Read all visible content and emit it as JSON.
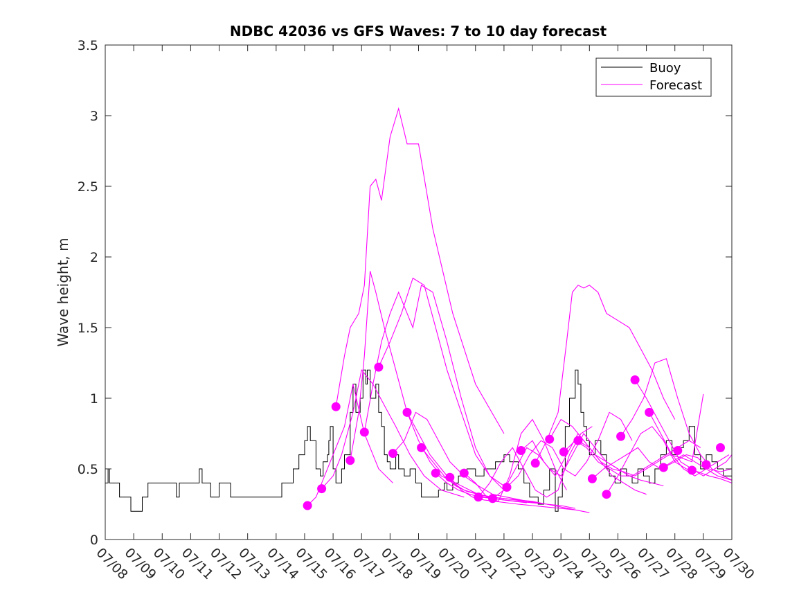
{
  "chart_data": {
    "type": "line",
    "title": "NDBC 42036 vs GFS Waves: 7 to 10 day forecast",
    "xlabel": "",
    "ylabel": "Wave height, m",
    "x_unit": "days since 07/08 00:00",
    "xlim": [
      0,
      22
    ],
    "ylim": [
      0,
      3.5
    ],
    "yticks": [
      0,
      0.5,
      1,
      1.5,
      2,
      2.5,
      3,
      3.5
    ],
    "yticklabels": [
      "0",
      "0.5",
      "1",
      "1.5",
      "2",
      "2.5",
      "3",
      "3.5"
    ],
    "xtick_labels": [
      "07/08",
      "07/09",
      "07/10",
      "07/11",
      "07/12",
      "07/13",
      "07/14",
      "07/15",
      "07/16",
      "07/17",
      "07/18",
      "07/19",
      "07/20",
      "07/21",
      "07/22",
      "07/23",
      "07/24",
      "07/25",
      "07/26",
      "07/27",
      "07/28",
      "07/29",
      "07/30"
    ],
    "legend": {
      "placement": "top-right",
      "entries": [
        "Buoy",
        "Forecast"
      ]
    },
    "colors": {
      "buoy": "#000000",
      "forecast": "#ff00ff",
      "axes": "#262626"
    },
    "buoy": {
      "name": "Buoy",
      "x": [
        0,
        0.1,
        0.15,
        0.5,
        0.9,
        1.3,
        1.5,
        1.9,
        2.5,
        2.6,
        3.0,
        3.3,
        3.4,
        3.7,
        4.0,
        4.4,
        5.0,
        6.0,
        6.2,
        6.5,
        6.6,
        6.8,
        7.0,
        7.1,
        7.2,
        7.4,
        7.55,
        7.65,
        7.8,
        7.85,
        7.9,
        8.0,
        8.1,
        8.3,
        8.4,
        8.6,
        8.7,
        8.8,
        8.95,
        9.05,
        9.15,
        9.2,
        9.3,
        9.5,
        9.6,
        9.7,
        9.8,
        9.9,
        10.0,
        10.2,
        10.3,
        10.5,
        10.7,
        10.9,
        11.1,
        11.2,
        11.5,
        11.7,
        11.9,
        12.0,
        12.2,
        12.4,
        12.7,
        13.0,
        13.3,
        13.7,
        14.0,
        14.2,
        14.5,
        14.7,
        14.9,
        15.2,
        15.4,
        15.6,
        15.8,
        15.9,
        16.05,
        16.15,
        16.3,
        16.5,
        16.6,
        16.7,
        16.8,
        16.9,
        17.0,
        17.2,
        17.4,
        17.6,
        17.7,
        17.9,
        18.1,
        18.3,
        18.5,
        18.7,
        18.9,
        19.1,
        19.3,
        19.5,
        19.7,
        19.9,
        20.1,
        20.3,
        20.5,
        20.7,
        20.9,
        21.1,
        21.3,
        21.5,
        21.7,
        22.0
      ],
      "y": [
        0.4,
        0.5,
        0.4,
        0.3,
        0.2,
        0.3,
        0.4,
        0.4,
        0.3,
        0.4,
        0.4,
        0.5,
        0.4,
        0.3,
        0.4,
        0.3,
        0.3,
        0.3,
        0.4,
        0.4,
        0.5,
        0.6,
        0.7,
        0.8,
        0.7,
        0.5,
        0.45,
        0.55,
        0.6,
        0.7,
        0.8,
        0.5,
        0.4,
        0.5,
        0.6,
        0.9,
        1.1,
        0.9,
        1.0,
        1.2,
        1.1,
        1.2,
        1.0,
        1.1,
        0.9,
        0.8,
        0.6,
        0.55,
        0.5,
        0.6,
        0.5,
        0.45,
        0.5,
        0.4,
        0.3,
        0.3,
        0.3,
        0.35,
        0.4,
        0.35,
        0.4,
        0.45,
        0.5,
        0.45,
        0.5,
        0.55,
        0.6,
        0.55,
        0.5,
        0.4,
        0.3,
        0.25,
        0.35,
        0.5,
        0.2,
        0.3,
        0.5,
        0.8,
        1.0,
        1.2,
        1.1,
        0.9,
        0.8,
        0.7,
        0.6,
        0.7,
        0.6,
        0.5,
        0.45,
        0.4,
        0.5,
        0.45,
        0.4,
        0.5,
        0.45,
        0.4,
        0.5,
        0.6,
        0.7,
        0.6,
        0.65,
        0.7,
        0.8,
        0.6,
        0.5,
        0.6,
        0.55,
        0.5,
        0.45,
        0.5
      ]
    },
    "forecast_series": [
      {
        "x": [
          7.1,
          7.4,
          7.7,
          8.0,
          8.4,
          8.7,
          9.1,
          9.6,
          10.1
        ],
        "y": [
          0.24,
          0.3,
          0.45,
          0.6,
          0.8,
          1.1,
          0.75,
          0.5,
          0.4
        ]
      },
      {
        "x": [
          7.6,
          8.0,
          8.3,
          8.7,
          9.0,
          9.4,
          9.8,
          10.2,
          10.7,
          11.2,
          11.8,
          12.6
        ],
        "y": [
          0.36,
          0.45,
          0.6,
          0.9,
          1.2,
          1.1,
          0.95,
          0.8,
          0.6,
          0.45,
          0.35,
          0.3
        ]
      },
      {
        "x": [
          8.1,
          8.4,
          8.6,
          8.9,
          9.1,
          9.3,
          9.5,
          9.7,
          10.0,
          10.3,
          10.6,
          11.0,
          11.5,
          12.2,
          13.0,
          14.0
        ],
        "y": [
          0.94,
          1.3,
          1.5,
          1.6,
          1.8,
          2.5,
          2.55,
          2.4,
          2.85,
          3.05,
          2.8,
          2.8,
          2.2,
          1.6,
          1.1,
          0.75
        ]
      },
      {
        "x": [
          8.6,
          8.9,
          9.1,
          9.3,
          9.5,
          9.8,
          10.2,
          10.6,
          11.0,
          11.4,
          11.8,
          12.3,
          12.8,
          13.3,
          14.0,
          14.8
        ],
        "y": [
          0.56,
          0.9,
          1.3,
          1.9,
          1.75,
          1.5,
          1.2,
          0.9,
          0.7,
          0.55,
          0.45,
          0.4,
          0.35,
          0.3,
          0.28,
          0.26
        ]
      },
      {
        "x": [
          9.1,
          9.4,
          9.7,
          10.0,
          10.3,
          10.5,
          10.8,
          11.1,
          11.5,
          12.0,
          12.5,
          13.0,
          13.5,
          14.0
        ],
        "y": [
          0.76,
          1.1,
          1.4,
          1.6,
          1.75,
          1.65,
          1.5,
          1.8,
          1.75,
          1.4,
          1.0,
          0.65,
          0.45,
          0.35
        ]
      },
      {
        "x": [
          9.6,
          10.0,
          10.4,
          10.8,
          11.2,
          11.6,
          12.0,
          12.5,
          13.0,
          13.5,
          14.0
        ],
        "y": [
          1.22,
          1.4,
          1.6,
          1.85,
          1.8,
          1.5,
          1.2,
          0.9,
          0.6,
          0.45,
          0.38
        ]
      },
      {
        "x": [
          10.1,
          10.5,
          10.9,
          11.3,
          11.7,
          12.1,
          12.6,
          13.1,
          13.6,
          14.1,
          14.6,
          15.1
        ],
        "y": [
          0.61,
          0.7,
          0.9,
          0.85,
          0.7,
          0.55,
          0.45,
          0.38,
          0.32,
          0.3,
          0.28,
          0.26
        ]
      },
      {
        "x": [
          10.6,
          11.0,
          11.4,
          11.8,
          12.2,
          12.6,
          13.1,
          13.6,
          14.0,
          14.4,
          14.8,
          15.2
        ],
        "y": [
          0.9,
          0.75,
          0.6,
          0.5,
          0.4,
          0.35,
          0.32,
          0.3,
          0.29,
          0.28,
          0.27,
          0.26
        ]
      },
      {
        "x": [
          11.1,
          11.5,
          11.9,
          12.3,
          12.7,
          13.1,
          13.5,
          14.0,
          14.5,
          15.0,
          15.5,
          16.0,
          16.5,
          17.0
        ],
        "y": [
          0.65,
          0.55,
          0.45,
          0.38,
          0.34,
          0.32,
          0.3,
          0.29,
          0.28,
          0.27,
          0.25,
          0.23,
          0.21,
          0.19
        ]
      },
      {
        "x": [
          11.6,
          12.0,
          12.4,
          12.8,
          13.2,
          13.6,
          14.0,
          14.5,
          15.0,
          15.5,
          16.0,
          16.5
        ],
        "y": [
          0.47,
          0.4,
          0.35,
          0.32,
          0.3,
          0.29,
          0.28,
          0.27,
          0.26,
          0.25,
          0.24,
          0.22
        ]
      },
      {
        "x": [
          12.1,
          12.5,
          12.9,
          13.3,
          13.7,
          14.1,
          14.5,
          15.0,
          15.5,
          16.0,
          16.5
        ],
        "y": [
          0.44,
          0.35,
          0.3,
          0.28,
          0.27,
          0.26,
          0.25,
          0.24,
          0.23,
          0.22,
          0.21
        ]
      },
      {
        "x": [
          12.6,
          13.0,
          13.4,
          13.8,
          14.2,
          14.6,
          15.0,
          15.4,
          15.8,
          16.2
        ],
        "y": [
          0.47,
          0.4,
          0.3,
          0.27,
          0.45,
          0.75,
          0.85,
          0.7,
          0.5,
          0.35
        ]
      },
      {
        "x": [
          13.1,
          13.5,
          13.9,
          14.3,
          14.7,
          15.1,
          15.5,
          15.9,
          16.3,
          16.7,
          17.1
        ],
        "y": [
          0.3,
          0.4,
          0.55,
          0.65,
          0.5,
          0.35,
          0.3,
          0.35,
          0.6,
          0.75,
          0.8
        ]
      },
      {
        "x": [
          13.6,
          14.0,
          14.4,
          14.8,
          15.2,
          15.6,
          16.0,
          16.4,
          16.8,
          17.2,
          17.6,
          18.0
        ],
        "y": [
          0.29,
          0.35,
          0.5,
          0.65,
          0.6,
          0.5,
          0.45,
          0.6,
          0.75,
          0.65,
          0.55,
          0.5
        ]
      },
      {
        "x": [
          14.1,
          14.5,
          14.9,
          15.3,
          15.7,
          16.1,
          16.5,
          16.9,
          17.3,
          17.7,
          18.1,
          18.5
        ],
        "y": [
          0.37,
          0.45,
          0.6,
          0.7,
          0.65,
          0.5,
          0.45,
          0.55,
          0.7,
          0.9,
          0.85,
          0.7
        ]
      },
      {
        "x": [
          14.6,
          15.0,
          15.4,
          15.8,
          16.2,
          16.6,
          17.0,
          17.4,
          17.8,
          18.2,
          18.6,
          19.0
        ],
        "y": [
          0.63,
          0.7,
          0.55,
          0.45,
          0.6,
          0.75,
          0.65,
          0.55,
          0.45,
          0.4,
          0.35,
          0.32
        ]
      },
      {
        "x": [
          15.1,
          15.5,
          15.9,
          16.2,
          16.4,
          16.6,
          16.8,
          17.0,
          17.3,
          17.6,
          18.0,
          18.4,
          18.8,
          19.2,
          19.6,
          20.0
        ],
        "y": [
          0.54,
          0.7,
          0.9,
          1.4,
          1.75,
          1.8,
          1.78,
          1.8,
          1.75,
          1.6,
          1.55,
          1.5,
          1.35,
          1.2,
          1.0,
          0.85
        ]
      },
      {
        "x": [
          15.6,
          16.0,
          16.4,
          16.8,
          17.2,
          17.6,
          18.0,
          18.4,
          18.8,
          19.2,
          19.6
        ],
        "y": [
          0.71,
          0.85,
          0.8,
          0.7,
          0.6,
          0.55,
          0.5,
          0.45,
          0.42,
          0.4,
          0.38
        ]
      },
      {
        "x": [
          16.1,
          16.5,
          16.9,
          17.3,
          17.7,
          18.1,
          18.5,
          18.9,
          19.3,
          19.7,
          20.1,
          20.5,
          20.9
        ],
        "y": [
          0.62,
          0.7,
          0.65,
          0.55,
          0.5,
          0.45,
          0.45,
          0.5,
          0.55,
          0.6,
          0.65,
          0.7,
          0.65
        ]
      },
      {
        "x": [
          16.6,
          17.0,
          17.4,
          17.8,
          18.2,
          18.6,
          19.0,
          19.4,
          19.8,
          20.2,
          20.6,
          21.0
        ],
        "y": [
          0.7,
          0.65,
          0.55,
          0.5,
          0.48,
          0.45,
          0.5,
          0.55,
          0.6,
          0.58,
          0.55,
          1.03
        ]
      },
      {
        "x": [
          17.1,
          17.5,
          17.9,
          18.3,
          18.7,
          19.1,
          19.5,
          19.9,
          20.3,
          20.7,
          21.1,
          21.5,
          22.0
        ],
        "y": [
          0.43,
          0.5,
          0.55,
          0.6,
          0.65,
          0.55,
          0.5,
          0.55,
          0.6,
          0.55,
          0.5,
          0.45,
          0.42
        ]
      },
      {
        "x": [
          17.6,
          18.0,
          18.4,
          18.8,
          19.2,
          19.6,
          20.0,
          20.4,
          20.8,
          21.2,
          21.6,
          22.0
        ],
        "y": [
          0.32,
          0.45,
          0.6,
          0.75,
          0.8,
          0.7,
          0.55,
          0.5,
          0.48,
          0.45,
          0.43,
          0.4
        ]
      },
      {
        "x": [
          18.1,
          18.5,
          18.9,
          19.3,
          19.7,
          20.1,
          20.5,
          20.9,
          21.3,
          21.7,
          22.0
        ],
        "y": [
          0.73,
          0.85,
          1.0,
          1.25,
          1.28,
          1.0,
          0.75,
          0.6,
          0.5,
          0.45,
          0.42
        ]
      },
      {
        "x": [
          18.6,
          19.0,
          19.4,
          19.8,
          20.2,
          20.6,
          21.0,
          21.4,
          21.8,
          22.0
        ],
        "y": [
          1.13,
          1.0,
          0.85,
          0.7,
          0.55,
          0.5,
          0.45,
          0.5,
          0.55,
          0.6
        ]
      },
      {
        "x": [
          19.1,
          19.5,
          19.9,
          20.3,
          20.7,
          21.1,
          21.5,
          21.9
        ],
        "y": [
          0.9,
          0.75,
          0.6,
          0.5,
          0.45,
          0.5,
          0.55,
          0.6
        ]
      },
      {
        "x": [
          19.6,
          20.0,
          20.4,
          20.8,
          21.2,
          21.6,
          22.0
        ],
        "y": [
          0.51,
          0.55,
          0.6,
          0.58,
          0.5,
          0.48,
          0.5
        ]
      }
    ],
    "forecast_markers": [
      {
        "x": 7.1,
        "y": 0.24
      },
      {
        "x": 7.6,
        "y": 0.36
      },
      {
        "x": 8.1,
        "y": 0.94
      },
      {
        "x": 8.6,
        "y": 0.56
      },
      {
        "x": 9.1,
        "y": 0.76
      },
      {
        "x": 9.6,
        "y": 1.22
      },
      {
        "x": 10.1,
        "y": 0.61
      },
      {
        "x": 10.6,
        "y": 0.9
      },
      {
        "x": 11.1,
        "y": 0.65
      },
      {
        "x": 11.6,
        "y": 0.47
      },
      {
        "x": 12.1,
        "y": 0.44
      },
      {
        "x": 12.6,
        "y": 0.47
      },
      {
        "x": 13.1,
        "y": 0.3
      },
      {
        "x": 13.6,
        "y": 0.29
      },
      {
        "x": 14.1,
        "y": 0.37
      },
      {
        "x": 14.6,
        "y": 0.63
      },
      {
        "x": 15.1,
        "y": 0.54
      },
      {
        "x": 15.6,
        "y": 0.71
      },
      {
        "x": 16.1,
        "y": 0.62
      },
      {
        "x": 16.6,
        "y": 0.7
      },
      {
        "x": 17.1,
        "y": 0.43
      },
      {
        "x": 17.6,
        "y": 0.32
      },
      {
        "x": 18.1,
        "y": 0.73
      },
      {
        "x": 18.6,
        "y": 1.13
      },
      {
        "x": 19.1,
        "y": 0.9
      },
      {
        "x": 19.6,
        "y": 0.51
      },
      {
        "x": 20.1,
        "y": 0.63
      },
      {
        "x": 20.6,
        "y": 0.49
      },
      {
        "x": 21.1,
        "y": 0.53
      },
      {
        "x": 21.6,
        "y": 0.65
      }
    ]
  }
}
